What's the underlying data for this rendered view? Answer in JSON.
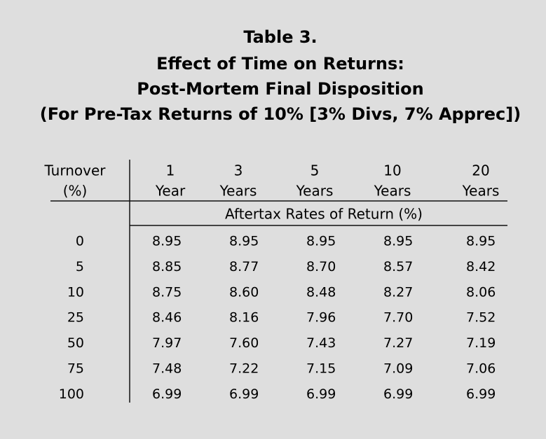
{
  "title": {
    "lines": [
      "Table 3.",
      "Effect of Time on Returns:",
      "Post-Mortem Final Disposition",
      "(For Pre-Tax Returns of 10% [3% Divs, 7% Apprec])"
    ]
  },
  "table": {
    "row_header": [
      "Turnover",
      "(%)"
    ],
    "columns": [
      [
        "1",
        "Year"
      ],
      [
        "3",
        "Years"
      ],
      [
        "5",
        "Years"
      ],
      [
        "10",
        "Years"
      ],
      [
        "20",
        "Years"
      ]
    ],
    "subheader": "Aftertax Rates of Return (%)",
    "rows": [
      [
        "0",
        "8.95",
        "8.95",
        "8.95",
        "8.95",
        "8.95"
      ],
      [
        "5",
        "8.85",
        "8.77",
        "8.70",
        "8.57",
        "8.42"
      ],
      [
        "10",
        "8.75",
        "8.60",
        "8.48",
        "8.27",
        "8.06"
      ],
      [
        "25",
        "8.46",
        "8.16",
        "7.96",
        "7.70",
        "7.52"
      ],
      [
        "50",
        "7.97",
        "7.60",
        "7.43",
        "7.27",
        "7.19"
      ],
      [
        "75",
        "7.48",
        "7.22",
        "7.15",
        "7.09",
        "7.06"
      ],
      [
        "100",
        "6.99",
        "6.99",
        "6.99",
        "6.99",
        "6.99"
      ]
    ]
  }
}
